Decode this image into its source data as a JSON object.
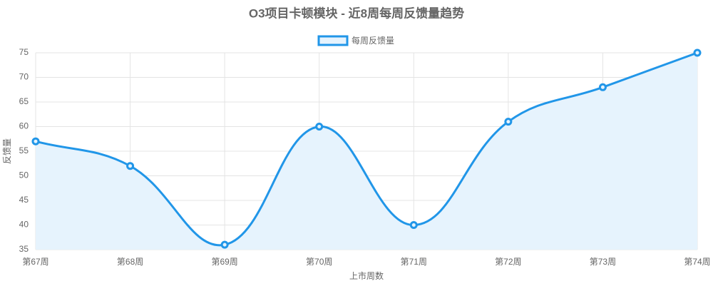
{
  "chart_data": {
    "type": "line",
    "title": "O3项目卡顿模块 - 近8周每周反馈量趋势",
    "x_label": "上市周数",
    "y_label": "反馈量",
    "categories": [
      "第67周",
      "第68周",
      "第69周",
      "第70周",
      "第71周",
      "第72周",
      "第73周",
      "第74周"
    ],
    "series": [
      {
        "name": "每周反馈量",
        "color": "#2196e8",
        "fill": "#e6f3fd",
        "values": [
          57,
          52,
          36,
          60,
          40,
          61,
          68,
          75
        ]
      }
    ],
    "ylim": [
      35,
      75
    ],
    "yticks": [
      35,
      40,
      45,
      50,
      55,
      60,
      65,
      70,
      75
    ],
    "grid": true,
    "legend": "top"
  }
}
